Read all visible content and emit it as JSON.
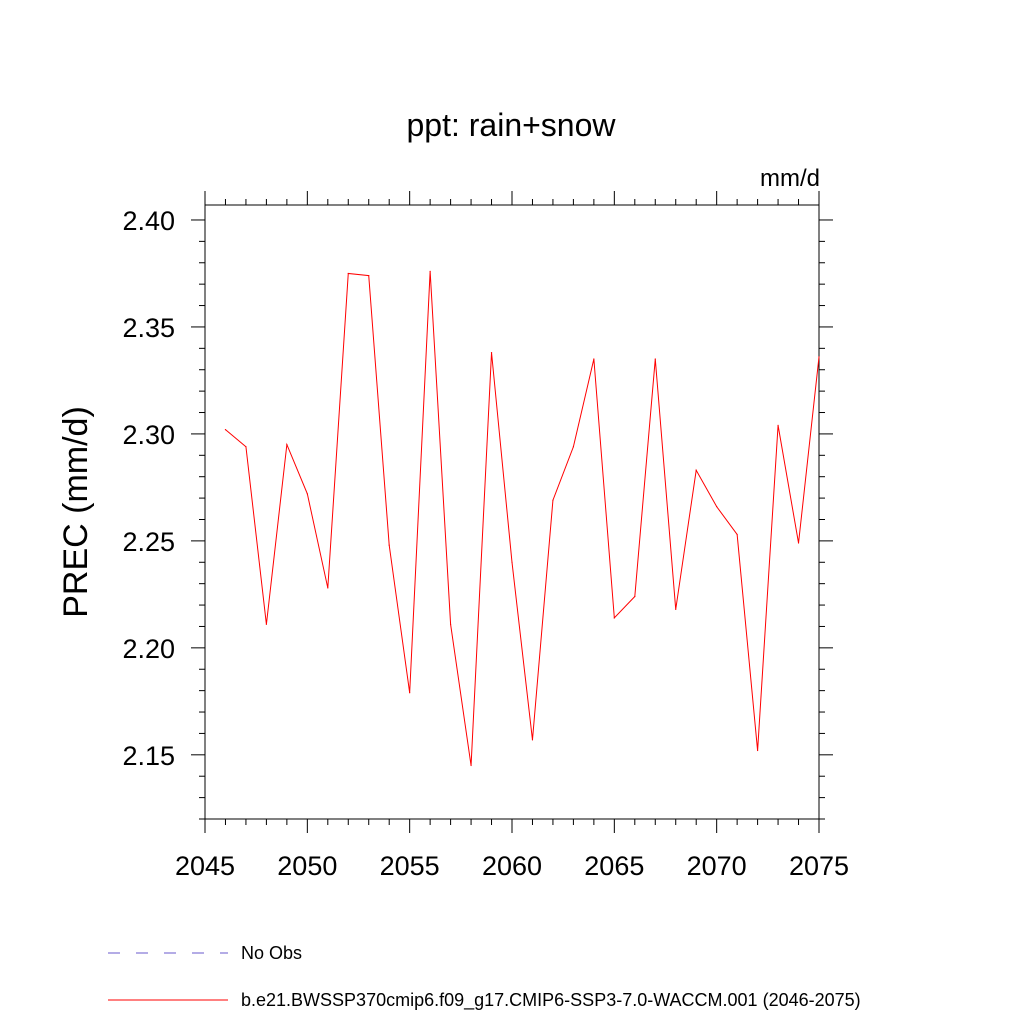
{
  "chart_data": {
    "type": "line",
    "title": "ppt: rain+snow",
    "units_label": "mm/d",
    "xlabel": "",
    "ylabel": "PREC  (mm/d)",
    "xlim": [
      2045,
      2075
    ],
    "ylim": [
      2.12,
      2.407
    ],
    "x_ticks": [
      2045,
      2050,
      2055,
      2060,
      2065,
      2070,
      2075
    ],
    "x_tick_labels": [
      "2045",
      "2050",
      "2055",
      "2060",
      "2065",
      "2070",
      "2075"
    ],
    "y_ticks": [
      2.15,
      2.2,
      2.25,
      2.3,
      2.35,
      2.4
    ],
    "y_tick_labels": [
      "2.15",
      "2.20",
      "2.25",
      "2.30",
      "2.35",
      "2.40"
    ],
    "series": [
      {
        "name": "b.e21.BWSSP370cmip6.f09_g17.CMIP6-SSP3-7.0-WACCM.001 (2046-2075)",
        "color": "#ff0000",
        "style": "solid",
        "x": [
          2046,
          2047,
          2048,
          2049,
          2050,
          2051,
          2052,
          2053,
          2054,
          2055,
          2056,
          2057,
          2058,
          2059,
          2060,
          2061,
          2062,
          2063,
          2064,
          2065,
          2066,
          2067,
          2068,
          2069,
          2070,
          2071,
          2072,
          2073,
          2074,
          2075
        ],
        "values": [
          2.302,
          2.294,
          2.211,
          2.295,
          2.272,
          2.228,
          2.375,
          2.374,
          2.248,
          2.179,
          2.376,
          2.211,
          2.145,
          2.338,
          2.24,
          2.157,
          2.269,
          2.294,
          2.335,
          2.214,
          2.224,
          2.335,
          2.218,
          2.283,
          2.266,
          2.253,
          2.152,
          2.304,
          2.249,
          2.336
        ]
      }
    ],
    "legend": [
      {
        "label": "No Obs",
        "color": "#6a5acd",
        "style": "dashed"
      },
      {
        "label": "b.e21.BWSSP370cmip6.f09_g17.CMIP6-SSP3-7.0-WACCM.001 (2046-2075)",
        "color": "#ff0000",
        "style": "solid"
      }
    ],
    "legend_position": "bottom-left",
    "grid": false
  }
}
